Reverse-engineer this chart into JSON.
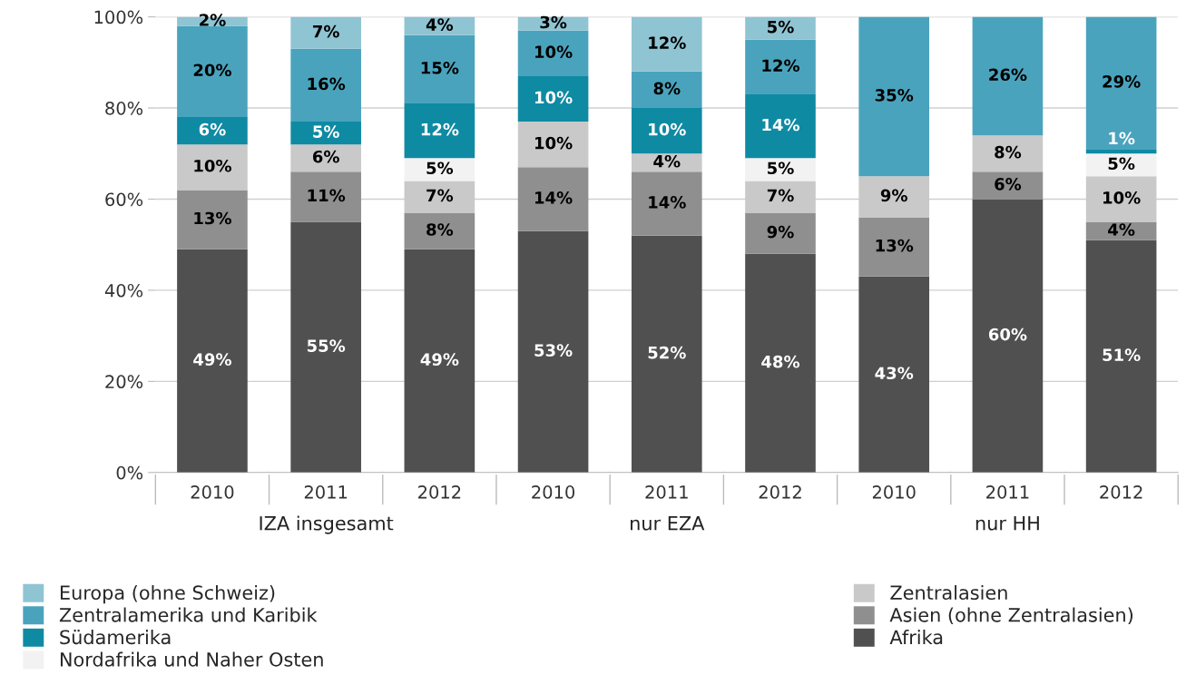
{
  "chart_data": {
    "type": "bar",
    "stacked": true,
    "categories": [
      "2010",
      "2011",
      "2012",
      "2010",
      "2011",
      "2012",
      "2010",
      "2011",
      "2012"
    ],
    "series": [
      {
        "name": "Afrika",
        "color": "#505050",
        "values": [
          49,
          55,
          49,
          53,
          52,
          48,
          43,
          60,
          51
        ],
        "value_labels": [
          "49%",
          "55%",
          "49%",
          "53%",
          "52%",
          "48%",
          "43%",
          "60%",
          "51%"
        ]
      },
      {
        "name": "Asien (ohne Zentralasien)",
        "color": "#8f8f8f",
        "values": [
          13,
          11,
          8,
          14,
          14,
          9,
          13,
          6,
          4
        ],
        "value_labels": [
          "13%",
          "11%",
          "8%",
          "14%",
          "14%",
          "9%",
          "13%",
          "6%",
          "4%"
        ]
      },
      {
        "name": "Zentralasien",
        "color": "#c9c9c9",
        "values": [
          10,
          6,
          7,
          10,
          4,
          7,
          9,
          8,
          10
        ],
        "value_labels": [
          "10%",
          "6%",
          "7%",
          "10%",
          "4%",
          "7%",
          "9%",
          "8%",
          "10%"
        ]
      },
      {
        "name": "Nordafrika und Naher Osten",
        "color": "#f2f2f2",
        "values": [
          0,
          0,
          5,
          0,
          0,
          5,
          0,
          0,
          5
        ],
        "value_labels": [
          null,
          null,
          "5%",
          null,
          null,
          "5%",
          null,
          null,
          "5%"
        ]
      },
      {
        "name": "Südamerika",
        "color": "#0f8aa3",
        "values": [
          6,
          5,
          12,
          10,
          10,
          14,
          0,
          0,
          1
        ],
        "value_labels": [
          "6%",
          "5%",
          "12%",
          "10%",
          "10%",
          "14%",
          null,
          null,
          "1%"
        ]
      },
      {
        "name": "Zentralamerika und Karibik",
        "color": "#4aa3bd",
        "values": [
          20,
          16,
          15,
          10,
          8,
          12,
          35,
          26,
          29
        ],
        "value_labels": [
          "20%",
          "16%",
          "15%",
          "10%",
          "8%",
          "12%",
          "35%",
          "26%",
          "29%"
        ]
      },
      {
        "name": "Europa (ohne Schweiz)",
        "color": "#8fc4d3",
        "values": [
          2,
          7,
          4,
          3,
          12,
          5,
          0,
          0,
          0
        ],
        "value_labels": [
          "2%",
          "7%",
          "4%",
          "3%",
          "12%",
          "5%",
          null,
          null,
          null
        ]
      }
    ],
    "ylim": [
      0,
      100
    ],
    "yticks": [
      {
        "value": 0,
        "label": "0%"
      },
      {
        "value": 20,
        "label": "20%"
      },
      {
        "value": 40,
        "label": "40%"
      },
      {
        "value": 60,
        "label": "60%"
      },
      {
        "value": 80,
        "label": "80%"
      },
      {
        "value": 100,
        "label": "100%"
      }
    ],
    "annotations": [
      "IZA insgesamt",
      "nur EZA",
      "nur HH"
    ],
    "grid": "y",
    "legend": "bottom"
  }
}
